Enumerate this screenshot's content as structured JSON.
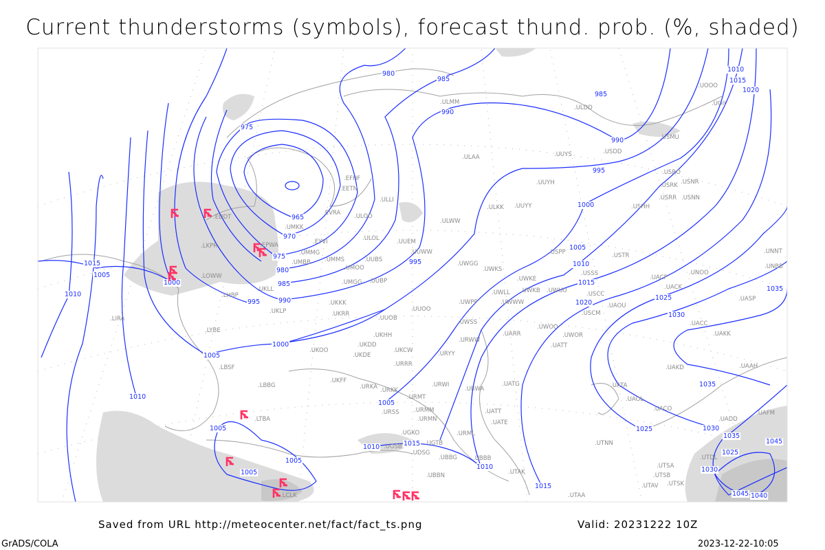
{
  "title": "Current thunderstorms (symbols), forecast thund. prob. (%, shaded)",
  "footer": {
    "saved_from": "Saved from URL http://meteocenter.net/fact/fact_ts.png",
    "valid": "Valid: 20231222 10Z",
    "software": "GrADS/COLA",
    "timestamp": "2023-12-22-10:05"
  },
  "colors": {
    "isobars": "#1a2dff",
    "thunderstorm_symbols": "#ff3366",
    "probability_shading": "#dcdcdc",
    "coastlines": "#a0a0a0",
    "station_labels": "#8a8a8a"
  },
  "isobar_labels": [
    "980",
    "985",
    "990",
    "975",
    "965",
    "970",
    "975",
    "980",
    "985",
    "990",
    "995",
    "1000",
    "1015",
    "1005",
    "1010",
    "985",
    "990",
    "995",
    "1000",
    "1005",
    "1010",
    "1015",
    "1020",
    "1025",
    "1030",
    "1035",
    "995",
    "1000",
    "1005",
    "1010",
    "1005",
    "1005",
    "1005",
    "1005",
    "1010",
    "1015",
    "1010",
    "1015",
    "1025",
    "1035",
    "1030",
    "1035",
    "1045",
    "1025",
    "1030",
    "1045",
    "1040",
    "1010",
    "1015",
    "1020"
  ],
  "stations": [
    "EFHF",
    "EETN",
    "ULLI",
    "EVRA",
    "ULOO",
    "UMKK",
    "EYVI",
    "UMMG",
    "ULOL",
    "EPWA",
    "EDDT",
    "LKPR",
    "LOWW",
    "LHBP",
    "UMBB",
    "UMMS",
    "UMOO",
    "UUBS",
    "UUWW",
    "UMGG",
    "UUBP",
    "UKLL",
    "UKLP",
    "UKKK",
    "UUEM",
    "ULMM",
    "ULDD",
    "ULAA",
    "UUYS",
    "UUYH",
    "ULKK",
    "UUYY",
    "ULWW",
    "USMU",
    "USDD",
    "UOOO",
    "UOII",
    "USRO",
    "USRK",
    "USNR",
    "USRR",
    "USNN",
    "USHH",
    "USPP",
    "USTR",
    "USSS",
    "USCC",
    "UWGG",
    "UWKS",
    "UWKE",
    "UWLL",
    "UWKB",
    "UWUU",
    "UWPP",
    "UWWW",
    "UUOO",
    "UUOB",
    "UKHH",
    "UKRR",
    "UKDD",
    "UKDE",
    "UKOO",
    "UKCW",
    "URRR",
    "UWSS",
    "URWW",
    "URYY",
    "UKFF",
    "URKA",
    "URKK",
    "URWI",
    "URMT",
    "URMM",
    "URMN",
    "URSS",
    "UGKO",
    "UGSB",
    "UGTB",
    "UDSG",
    "UBBG",
    "UBBN",
    "URWA",
    "UATG",
    "UATT",
    "UATE",
    "URML",
    "UBBB",
    "UTAK",
    "UTAA",
    "UTNN",
    "UTSA",
    "UTSB",
    "UTAV",
    "UTSK",
    "UARR",
    "UWOO",
    "UWOR",
    "UATT",
    "USCM",
    "UAOU",
    "UACK",
    "UACP",
    "UNOO",
    "UASP",
    "UNNT",
    "UNBB",
    "UACC",
    "UAKK",
    "UAKD",
    "UAAH",
    "UATA",
    "UAOL",
    "UACO",
    "UAFM",
    "UADD",
    "UTDL",
    "LIRA",
    "LYBE",
    "LBSF",
    "LBBG",
    "LTBA",
    "LCLK"
  ]
}
